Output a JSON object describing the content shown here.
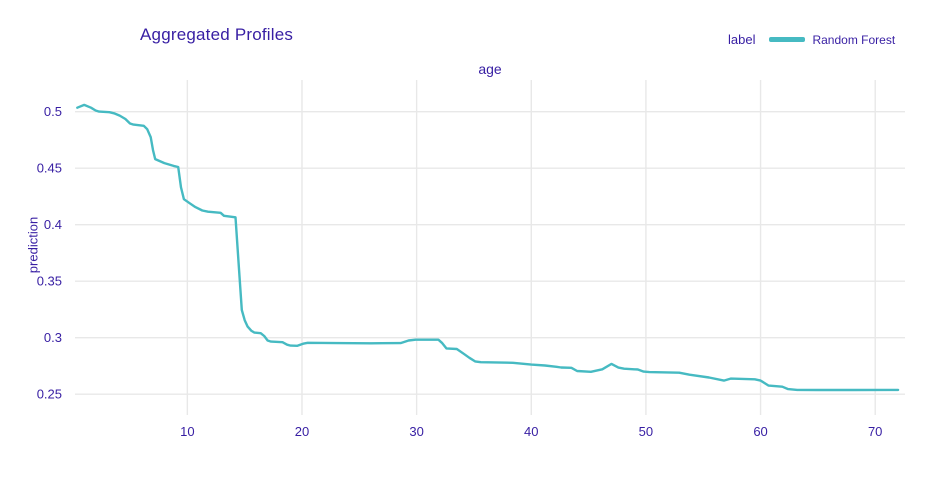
{
  "title": "Aggregated Profiles",
  "legend": {
    "title": "label",
    "items": [
      {
        "label": "Random Forest",
        "color": "#46bac2"
      }
    ]
  },
  "axes": {
    "x_title": "age",
    "y_title": "prediction"
  },
  "colors": {
    "accent_text": "#371ea3",
    "line": "#46bac2",
    "grid": "#e8e8e8",
    "background": "#ffffff"
  },
  "chart_data": {
    "type": "line",
    "title": "Aggregated Profiles",
    "xlabel": "age",
    "ylabel": "prediction",
    "legend_title": "label",
    "legend_position": "top-right",
    "grid": true,
    "xlim": [
      0.2,
      72.6
    ],
    "ylim": [
      0.236,
      0.528
    ],
    "x_ticks": [
      10,
      20,
      30,
      40,
      50,
      60,
      70
    ],
    "y_ticks": [
      0.25,
      0.3,
      0.35,
      0.4,
      0.45,
      0.5
    ],
    "series": [
      {
        "name": "Random Forest",
        "color": "#46bac2",
        "points": [
          [
            0.4,
            0.5035
          ],
          [
            1.0,
            0.506
          ],
          [
            1.6,
            0.5035
          ],
          [
            2.0,
            0.501
          ],
          [
            2.3,
            0.5
          ],
          [
            3.2,
            0.4995
          ],
          [
            3.6,
            0.4985
          ],
          [
            4.1,
            0.4965
          ],
          [
            4.6,
            0.4935
          ],
          [
            5.0,
            0.4895
          ],
          [
            5.3,
            0.4885
          ],
          [
            6.2,
            0.4875
          ],
          [
            6.5,
            0.4845
          ],
          [
            6.8,
            0.4775
          ],
          [
            7.0,
            0.466
          ],
          [
            7.2,
            0.458
          ],
          [
            8.0,
            0.4545
          ],
          [
            8.8,
            0.452
          ],
          [
            9.2,
            0.451
          ],
          [
            9.45,
            0.433
          ],
          [
            9.7,
            0.4225
          ],
          [
            10.2,
            0.419
          ],
          [
            10.7,
            0.4155
          ],
          [
            11.3,
            0.4125
          ],
          [
            11.8,
            0.4115
          ],
          [
            12.9,
            0.4105
          ],
          [
            13.2,
            0.4078
          ],
          [
            14.2,
            0.4065
          ],
          [
            14.5,
            0.362
          ],
          [
            14.75,
            0.3245
          ],
          [
            15.0,
            0.3155
          ],
          [
            15.25,
            0.31
          ],
          [
            15.6,
            0.306
          ],
          [
            15.85,
            0.3045
          ],
          [
            16.4,
            0.304
          ],
          [
            16.7,
            0.3015
          ],
          [
            17.0,
            0.2975
          ],
          [
            17.3,
            0.2965
          ],
          [
            18.3,
            0.296
          ],
          [
            18.7,
            0.2938
          ],
          [
            19.0,
            0.293
          ],
          [
            19.6,
            0.2928
          ],
          [
            20.1,
            0.2947
          ],
          [
            20.5,
            0.2955
          ],
          [
            23.0,
            0.2952
          ],
          [
            26.0,
            0.295
          ],
          [
            28.6,
            0.2952
          ],
          [
            29.3,
            0.2975
          ],
          [
            29.9,
            0.2982
          ],
          [
            31.9,
            0.2982
          ],
          [
            32.2,
            0.2955
          ],
          [
            32.6,
            0.2905
          ],
          [
            33.5,
            0.29
          ],
          [
            34.1,
            0.2858
          ],
          [
            34.6,
            0.2822
          ],
          [
            35.1,
            0.279
          ],
          [
            35.6,
            0.2783
          ],
          [
            38.4,
            0.2778
          ],
          [
            40.0,
            0.2762
          ],
          [
            41.2,
            0.2754
          ],
          [
            42.2,
            0.2742
          ],
          [
            42.6,
            0.2736
          ],
          [
            43.5,
            0.2733
          ],
          [
            44.0,
            0.2705
          ],
          [
            45.2,
            0.2698
          ],
          [
            46.2,
            0.272
          ],
          [
            47.0,
            0.2768
          ],
          [
            47.6,
            0.2735
          ],
          [
            48.1,
            0.2725
          ],
          [
            49.3,
            0.2718
          ],
          [
            49.8,
            0.27
          ],
          [
            50.3,
            0.2695
          ],
          [
            52.9,
            0.269
          ],
          [
            53.8,
            0.2672
          ],
          [
            55.5,
            0.2648
          ],
          [
            56.8,
            0.262
          ],
          [
            57.4,
            0.2638
          ],
          [
            59.5,
            0.2632
          ],
          [
            60.0,
            0.262
          ],
          [
            60.7,
            0.2576
          ],
          [
            61.9,
            0.2566
          ],
          [
            62.4,
            0.2545
          ],
          [
            63.2,
            0.2538
          ],
          [
            65.0,
            0.2537
          ],
          [
            68.0,
            0.2537
          ],
          [
            72.0,
            0.2538
          ]
        ]
      }
    ]
  }
}
